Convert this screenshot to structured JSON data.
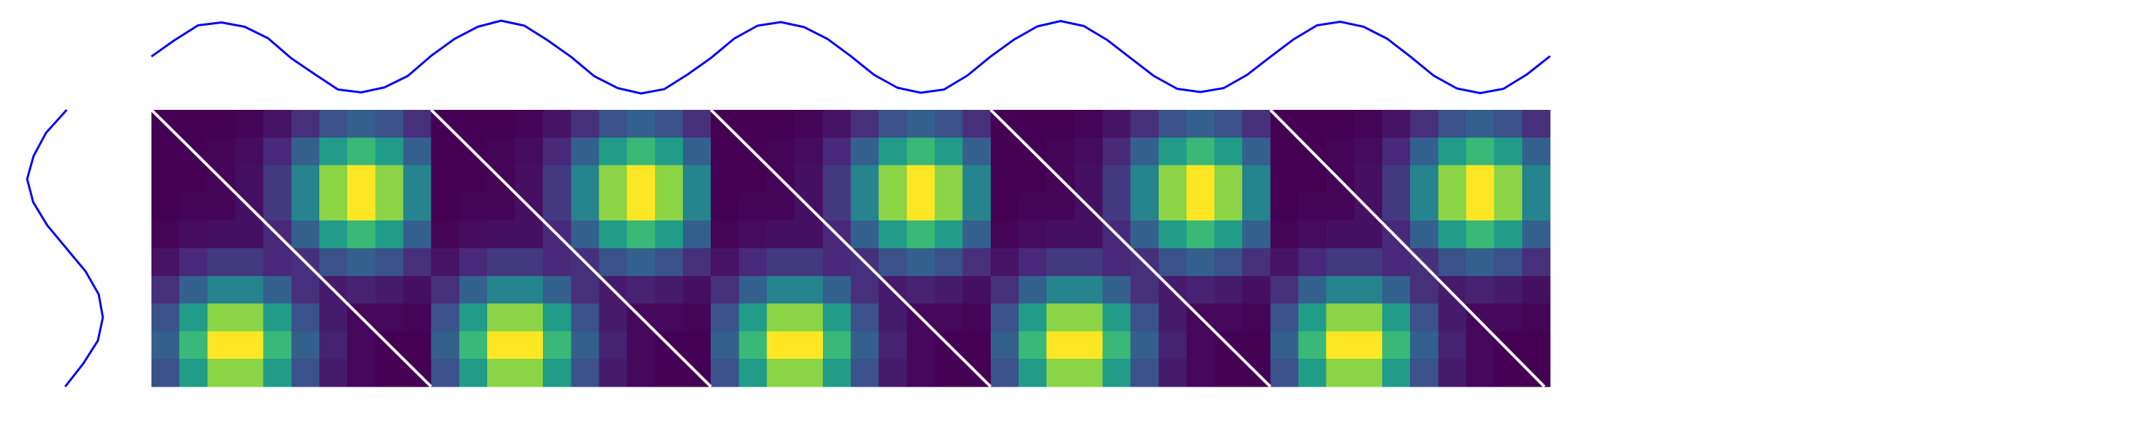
{
  "chart_data": [
    {
      "type": "line",
      "orientation": "horizontal",
      "color": "#0000ff",
      "values": [
        0.02,
        0.48,
        0.89,
        0.97,
        0.85,
        0.53,
        -0.03,
        -0.47,
        -0.9,
        -0.98,
        -0.84,
        -0.52,
        0.04,
        0.51,
        0.85,
        1.02,
        0.88,
        0.47,
        0.01,
        -0.53,
        -0.86,
        -1.01,
        -0.89,
        -0.48,
        -0.02,
        0.52,
        0.88,
        0.98,
        0.84,
        0.51,
        0.03,
        -0.49,
        -0.85,
        -0.99,
        -0.9,
        -0.51,
        0.02,
        0.49,
        0.86,
        1.01,
        0.87,
        0.48,
        -0.02,
        -0.52,
        -0.88,
        -0.97,
        -0.86,
        -0.49,
        0.01,
        0.5,
        0.89,
        0.99,
        0.85,
        0.52,
        0.02,
        -0.51,
        -0.87,
        -1.0,
        -0.88,
        -0.48,
        0.03
      ]
    },
    {
      "type": "line",
      "orientation": "vertical",
      "color": "#0000ff",
      "values": [
        0.03,
        -0.52,
        -0.85,
        -1.02,
        -0.86,
        -0.49,
        0.02,
        0.53,
        0.88,
        0.99,
        0.86,
        0.47,
        -0.01
      ]
    },
    {
      "type": "heatmap",
      "colormap": "viridis",
      "z": [
        [
          0,
          0,
          0,
          0.01,
          0.05,
          0.13,
          0.24,
          0.29,
          0.24,
          0.13,
          0,
          0,
          0,
          0.01,
          0.05,
          0.13,
          0.24,
          0.29,
          0.24,
          0.13,
          0,
          0,
          0,
          0.01,
          0.05,
          0.13,
          0.24,
          0.29,
          0.24,
          0.13,
          0,
          0,
          0,
          0.01,
          0.05,
          0.13,
          0.24,
          0.29,
          0.24,
          0.13,
          0,
          0,
          0,
          0.01,
          0.05,
          0.13,
          0.24,
          0.29,
          0.24,
          0.13
        ],
        [
          0,
          0,
          0.01,
          0.03,
          0.11,
          0.29,
          0.52,
          0.64,
          0.52,
          0.29,
          0,
          0,
          0.01,
          0.03,
          0.11,
          0.29,
          0.52,
          0.64,
          0.52,
          0.29,
          0,
          0,
          0.01,
          0.03,
          0.11,
          0.29,
          0.52,
          0.64,
          0.52,
          0.29,
          0,
          0,
          0.01,
          0.03,
          0.11,
          0.29,
          0.52,
          0.64,
          0.52,
          0.29,
          0,
          0,
          0.01,
          0.03,
          0.11,
          0.29,
          0.52,
          0.64,
          0.52,
          0.29
        ],
        [
          0,
          0,
          0.01,
          0.04,
          0.16,
          0.43,
          0.78,
          0.95,
          0.78,
          0.43,
          0,
          0,
          0.01,
          0.04,
          0.16,
          0.43,
          0.78,
          0.95,
          0.78,
          0.43,
          0,
          0,
          0.01,
          0.04,
          0.16,
          0.43,
          0.78,
          0.95,
          0.78,
          0.43,
          0,
          0,
          0.01,
          0.04,
          0.16,
          0.43,
          0.78,
          0.95,
          0.78,
          0.43,
          0,
          0,
          0.01,
          0.04,
          0.16,
          0.43,
          0.78,
          0.95,
          0.78,
          0.43
        ],
        [
          0,
          0.01,
          0.01,
          0.04,
          0.16,
          0.43,
          0.78,
          0.95,
          0.78,
          0.43,
          0,
          0.01,
          0.01,
          0.04,
          0.16,
          0.43,
          0.78,
          0.95,
          0.78,
          0.43,
          0,
          0.01,
          0.01,
          0.04,
          0.16,
          0.43,
          0.78,
          0.95,
          0.78,
          0.43,
          0,
          0.01,
          0.01,
          0.04,
          0.16,
          0.43,
          0.78,
          0.95,
          0.78,
          0.43,
          0,
          0.01,
          0.01,
          0.04,
          0.16,
          0.43,
          0.78,
          0.95,
          0.78,
          0.43
        ],
        [
          0.01,
          0.03,
          0.04,
          0.04,
          0.11,
          0.29,
          0.52,
          0.64,
          0.52,
          0.29,
          0.01,
          0.03,
          0.04,
          0.04,
          0.11,
          0.29,
          0.52,
          0.64,
          0.52,
          0.29,
          0.01,
          0.03,
          0.04,
          0.04,
          0.11,
          0.29,
          0.52,
          0.64,
          0.52,
          0.29,
          0.01,
          0.03,
          0.04,
          0.04,
          0.11,
          0.29,
          0.52,
          0.64,
          0.52,
          0.29,
          0.01,
          0.03,
          0.04,
          0.04,
          0.11,
          0.29,
          0.52,
          0.64,
          0.52,
          0.29
        ],
        [
          0.05,
          0.11,
          0.16,
          0.16,
          0.11,
          0.13,
          0.24,
          0.29,
          0.24,
          0.13,
          0.05,
          0.11,
          0.16,
          0.16,
          0.11,
          0.13,
          0.24,
          0.29,
          0.24,
          0.13,
          0.05,
          0.11,
          0.16,
          0.16,
          0.11,
          0.13,
          0.24,
          0.29,
          0.24,
          0.13,
          0.05,
          0.11,
          0.16,
          0.16,
          0.11,
          0.13,
          0.24,
          0.29,
          0.24,
          0.13,
          0.05,
          0.11,
          0.16,
          0.16,
          0.11,
          0.13,
          0.24,
          0.29,
          0.24,
          0.13
        ],
        [
          0.13,
          0.29,
          0.43,
          0.43,
          0.29,
          0.13,
          0.07,
          0.09,
          0.07,
          0.04,
          0.13,
          0.29,
          0.43,
          0.43,
          0.29,
          0.13,
          0.07,
          0.09,
          0.07,
          0.04,
          0.13,
          0.29,
          0.43,
          0.43,
          0.29,
          0.13,
          0.07,
          0.09,
          0.07,
          0.04,
          0.13,
          0.29,
          0.43,
          0.43,
          0.29,
          0.13,
          0.07,
          0.09,
          0.07,
          0.04,
          0.13,
          0.29,
          0.43,
          0.43,
          0.29,
          0.13,
          0.07,
          0.09,
          0.07,
          0.04
        ],
        [
          0.24,
          0.52,
          0.78,
          0.78,
          0.52,
          0.24,
          0.07,
          0.02,
          0.02,
          0.01,
          0.24,
          0.52,
          0.78,
          0.78,
          0.52,
          0.24,
          0.07,
          0.02,
          0.02,
          0.01,
          0.24,
          0.52,
          0.78,
          0.78,
          0.52,
          0.24,
          0.07,
          0.02,
          0.02,
          0.01,
          0.24,
          0.52,
          0.78,
          0.78,
          0.52,
          0.24,
          0.07,
          0.02,
          0.02,
          0.01,
          0.24,
          0.52,
          0.78,
          0.78,
          0.52,
          0.24,
          0.07,
          0.02,
          0.02,
          0.01
        ],
        [
          0.29,
          0.64,
          0.95,
          0.95,
          0.64,
          0.29,
          0.09,
          0.02,
          0,
          0,
          0.29,
          0.64,
          0.95,
          0.95,
          0.64,
          0.29,
          0.09,
          0.02,
          0,
          0,
          0.29,
          0.64,
          0.95,
          0.95,
          0.64,
          0.29,
          0.09,
          0.02,
          0,
          0,
          0.29,
          0.64,
          0.95,
          0.95,
          0.64,
          0.29,
          0.09,
          0.02,
          0,
          0,
          0.29,
          0.64,
          0.95,
          0.95,
          0.64,
          0.29,
          0.09,
          0.02,
          0,
          0
        ],
        [
          0.24,
          0.52,
          0.78,
          0.78,
          0.52,
          0.24,
          0.07,
          0.02,
          0,
          0,
          0.24,
          0.52,
          0.78,
          0.78,
          0.52,
          0.24,
          0.07,
          0.02,
          0,
          0,
          0.24,
          0.52,
          0.78,
          0.78,
          0.52,
          0.24,
          0.07,
          0.02,
          0,
          0,
          0.24,
          0.52,
          0.78,
          0.78,
          0.52,
          0.24,
          0.07,
          0.02,
          0,
          0,
          0.24,
          0.52,
          0.78,
          0.78,
          0.52,
          0.24,
          0.07,
          0.02,
          0,
          0
        ]
      ]
    }
  ]
}
